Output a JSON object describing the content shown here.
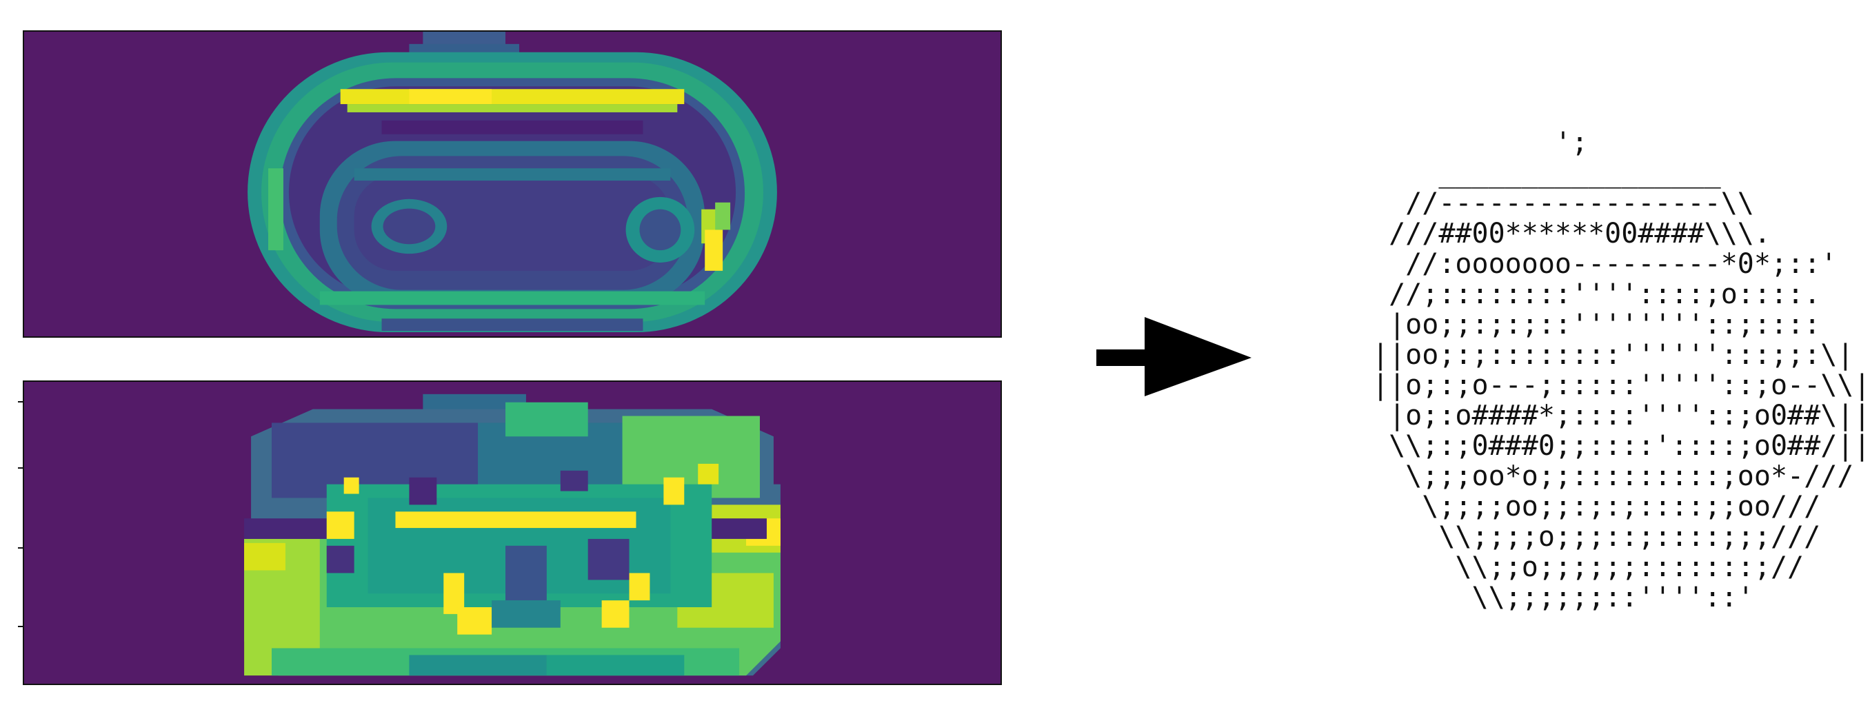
{
  "colors": {
    "background": "#ffffff",
    "heatmap_background": "#541b68",
    "border": "#111111",
    "arrow": "#000000"
  },
  "panels": {
    "top": {
      "name": "reconstruction-heatmap"
    },
    "bottom": {
      "name": "phase-heatmap"
    }
  },
  "arrow": {
    "icon": "right-arrow-icon"
  },
  "ascii_art": {
    "lines": [
      "           ';",
      "    _________________",
      "  //-----------------\\\\",
      " ///##00******00####\\\\\\.",
      "  //:ooooooo---------*0*;::'",
      " //;::::::::''''::::;o::::.",
      " |oo;;:;:;::''''''''::;::::",
      "||oo;:;::::::::'''''':::;;:\\|",
      "||o;:;o---;:::::'''''::;o--\\\\|",
      " |o;:o####*;::::''''::;o0##\\||",
      " \\\\;:;0###0;;::::'::::;o0##/||",
      "  \\;;;oo*o;;:::::::::;oo*-///",
      "   \\;;;;oo;;:;:;::::;;oo///",
      "    \\\\;;;;o;;;::;::::;;;///",
      "     \\\\;;o;;;;;;:::::::;//",
      "      \\\\;;;;;;::''''::'"
    ]
  }
}
